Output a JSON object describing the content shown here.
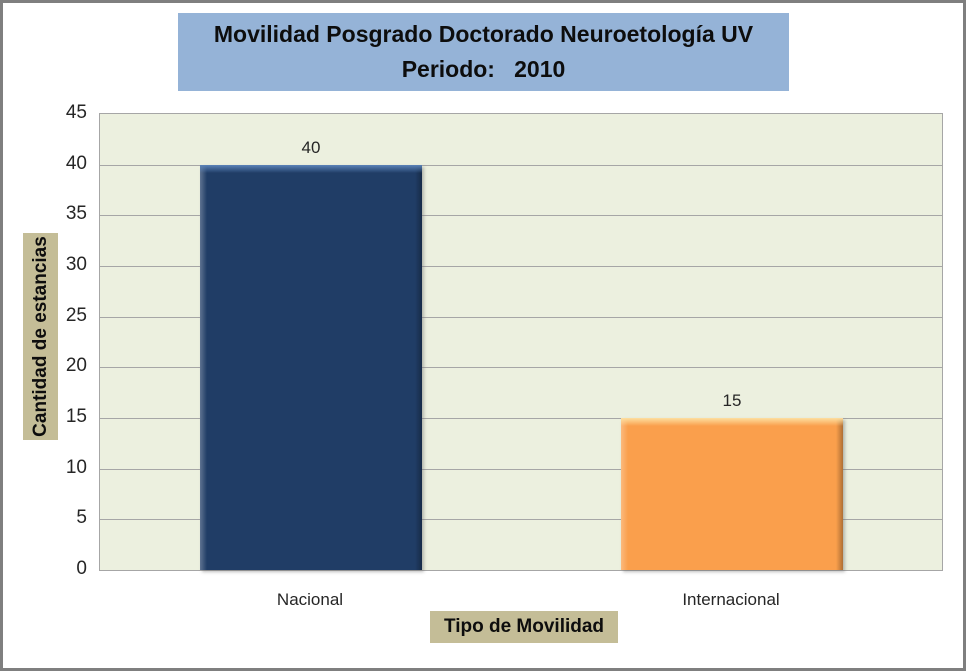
{
  "title": {
    "line1": "Movilidad Posgrado Doctorado Neuroetología UV",
    "line2": "Periodo:   2010"
  },
  "chart_data": {
    "type": "bar",
    "title": "Movilidad Posgrado Doctorado Neuroetología UV — Periodo: 2010",
    "categories": [
      "Nacional",
      "Internacional"
    ],
    "values": [
      40,
      15
    ],
    "data_labels": [
      "40",
      "15"
    ],
    "xlabel": "Tipo de Movilidad",
    "ylabel": "Cantidad de estancias",
    "ylim": [
      0,
      45
    ],
    "ytick_step": 5,
    "yticks": [
      0,
      5,
      10,
      15,
      20,
      25,
      30,
      35,
      40,
      45
    ],
    "grid": true,
    "legend": "none",
    "bar_colors": [
      "#203D66",
      "#FA9F4C"
    ],
    "bar_highlights": [
      "#5B83B8",
      "#FDDFA0"
    ]
  },
  "colors": {
    "frame_border": "#7F7F7F",
    "title_bg": "#95B3D7",
    "axis_title_bg": "#C4BD97",
    "plot_bg": "#ECF0DF",
    "gridline": "#A6A6A6",
    "text": "#262626"
  }
}
